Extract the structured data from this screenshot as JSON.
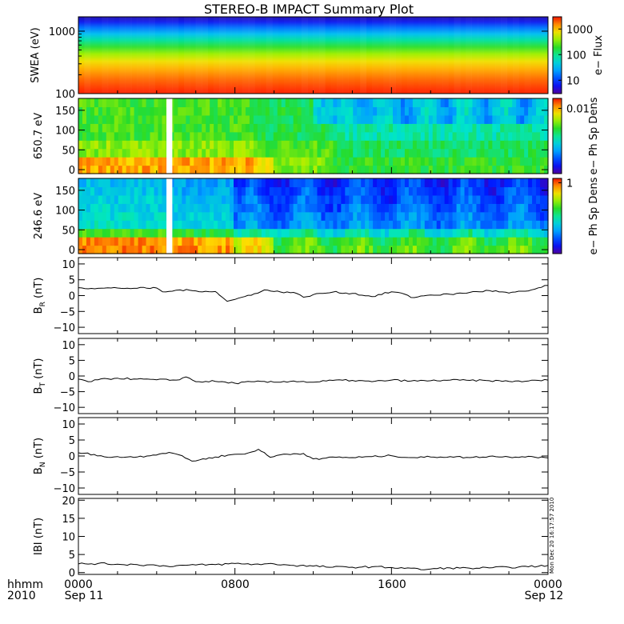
{
  "title": "STEREO-B IMPACT Summary Plot",
  "footer": {
    "row1_left": "hhmm",
    "row2_left": "2010",
    "x_tick_labels": [
      "0000",
      "0800",
      "1600",
      "0000"
    ],
    "date_labels": [
      "Sep 11",
      "Sep 12"
    ],
    "timestamp": "Mon Dec 20 16:17:57 2010"
  },
  "chart_data": [
    {
      "type": "heatmap",
      "ylabel": "SWEA (eV)",
      "yscale": "log",
      "ylim": [
        100,
        1700
      ],
      "y_ticks": [
        {
          "v": 100,
          "label": "100"
        },
        {
          "v": 1000,
          "label": "1000"
        }
      ],
      "colorbar": {
        "label": "e− Flux",
        "scale": "log",
        "range": [
          3,
          3000
        ],
        "ticks": [
          "1000",
          "100",
          "10"
        ],
        "tick_values": [
          1000,
          100,
          10
        ]
      },
      "description_bands_ev": [
        {
          "energy": 110,
          "color": "#ff2a00"
        },
        {
          "energy": 170,
          "color": "#ff6a00"
        },
        {
          "energy": 250,
          "color": "#ffb000"
        },
        {
          "energy": 330,
          "color": "#f0e000"
        },
        {
          "energy": 430,
          "color": "#a0f000"
        },
        {
          "energy": 560,
          "color": "#30e030"
        },
        {
          "energy": 720,
          "color": "#00e0a0"
        },
        {
          "energy": 900,
          "color": "#00c0f0"
        },
        {
          "energy": 1150,
          "color": "#0070ff"
        },
        {
          "energy": 1400,
          "color": "#1020f0"
        },
        {
          "energy": 1700,
          "color": "#2010b0"
        }
      ]
    },
    {
      "type": "heatmap",
      "ylabel": "650.7 eV",
      "ylim": [
        -10,
        180
      ],
      "y_ticks": [
        {
          "v": 0,
          "label": "0"
        },
        {
          "v": 50,
          "label": "50"
        },
        {
          "v": 100,
          "label": "100"
        },
        {
          "v": 150,
          "label": "150"
        }
      ],
      "colorbar": {
        "label": "e− Ph Sp Dens",
        "scale": "log",
        "range": [
          0.0007,
          0.015
        ],
        "ticks": [
          "0.01"
        ],
        "tick_values": [
          0.01
        ]
      },
      "data_gap_hours": [
        4.5,
        4.8
      ]
    },
    {
      "type": "heatmap",
      "ylabel": "246.6 eV",
      "ylim": [
        -10,
        180
      ],
      "y_ticks": [
        {
          "v": 0,
          "label": "0"
        },
        {
          "v": 50,
          "label": "50"
        },
        {
          "v": 100,
          "label": "100"
        },
        {
          "v": 150,
          "label": "150"
        }
      ],
      "colorbar": {
        "label": "e− Ph Sp Dens",
        "scale": "log",
        "range": [
          0.05,
          1.2
        ],
        "ticks": [
          "1"
        ],
        "tick_values": [
          1
        ]
      },
      "data_gap_hours": [
        4.5,
        4.8
      ]
    },
    {
      "type": "line",
      "ylabel_main": "B",
      "ylabel_sub": "R",
      "ylabel_unit": " (nT)",
      "ylim": [
        -12,
        12
      ],
      "y_ticks": [
        -10,
        -5,
        0,
        5,
        10
      ],
      "x_unit": "hours after 0000 Sep 11 2010",
      "x": [
        0,
        1,
        2,
        3,
        4,
        4.3,
        4.8,
        5.2,
        6,
        7,
        7.2,
        7.6,
        8,
        8.5,
        9,
        9.5,
        10,
        11,
        11.5,
        12,
        13,
        14,
        15,
        16,
        16.5,
        17,
        18,
        19,
        20,
        21,
        22,
        23,
        24
      ],
      "y": [
        2.5,
        2.3,
        2.4,
        2.3,
        2.4,
        1.2,
        1.4,
        1.8,
        1.5,
        1.3,
        0.2,
        -1.8,
        -1.2,
        -0.3,
        0.6,
        1.8,
        1.3,
        1.0,
        -0.5,
        0.3,
        1.1,
        0.7,
        -0.3,
        1.2,
        0.8,
        -0.6,
        0.2,
        0.4,
        1.0,
        1.6,
        0.8,
        1.5,
        3.2
      ]
    },
    {
      "type": "line",
      "ylabel_main": "B",
      "ylabel_sub": "T",
      "ylabel_unit": " (nT)",
      "ylim": [
        -12,
        12
      ],
      "y_ticks": [
        -10,
        -5,
        0,
        5,
        10
      ],
      "x_unit": "hours after 0000 Sep 11 2010",
      "x": [
        0,
        0.5,
        1,
        2,
        3,
        4,
        5,
        5.5,
        6,
        7,
        8,
        9,
        10,
        11,
        12,
        13,
        14,
        15,
        16,
        17,
        18,
        19,
        20,
        21,
        22,
        23,
        24
      ],
      "y": [
        -1.0,
        -1.8,
        -1.2,
        -0.7,
        -1.0,
        -1.2,
        -1.3,
        -0.3,
        -1.8,
        -1.7,
        -2.3,
        -1.8,
        -2.0,
        -1.6,
        -2.0,
        -1.4,
        -1.4,
        -1.8,
        -1.3,
        -1.6,
        -1.5,
        -1.3,
        -1.4,
        -1.5,
        -1.7,
        -1.6,
        -1.3
      ]
    },
    {
      "type": "line",
      "ylabel_main": "B",
      "ylabel_sub": "N",
      "ylabel_unit": " (nT)",
      "ylim": [
        -12,
        12
      ],
      "y_ticks": [
        -10,
        -5,
        0,
        5,
        10
      ],
      "x_unit": "hours after 0000 Sep 11 2010",
      "x": [
        0,
        0.8,
        1.5,
        2.5,
        3.5,
        4.3,
        4.8,
        5.3,
        5.8,
        6.2,
        7,
        7.8,
        8.5,
        9.2,
        9.8,
        10.5,
        11.5,
        12,
        12.3,
        13,
        14,
        15,
        16,
        17,
        18,
        19,
        20,
        21,
        22,
        23,
        24
      ],
      "y": [
        1.0,
        0.5,
        -0.4,
        -0.3,
        0.0,
        0.8,
        0.9,
        0.1,
        -1.6,
        -1.2,
        -0.3,
        0.4,
        0.6,
        2.1,
        -0.4,
        0.6,
        0.8,
        -0.9,
        -1.1,
        -0.3,
        -0.5,
        -0.2,
        0.1,
        -0.5,
        -0.3,
        -0.2,
        -0.5,
        -0.1,
        -0.3,
        -0.1,
        -0.6
      ]
    },
    {
      "type": "line",
      "ylabel_main": "IBI (nT)",
      "ylim": [
        -0.5,
        20.5
      ],
      "y_ticks": [
        0,
        5,
        10,
        15,
        20
      ],
      "x_unit": "hours after 0000 Sep 11 2010",
      "x": [
        0,
        1,
        2,
        3,
        4,
        4.5,
        5,
        6,
        7,
        8,
        9,
        10,
        11,
        12,
        13,
        14,
        15,
        16,
        17,
        17.5,
        18,
        19,
        20,
        21,
        22,
        23,
        24
      ],
      "y": [
        2.4,
        2.5,
        2.3,
        2.2,
        2.0,
        1.8,
        1.9,
        2.1,
        2.2,
        2.5,
        2.3,
        2.4,
        2.0,
        1.8,
        1.5,
        1.5,
        1.6,
        1.4,
        1.2,
        0.8,
        1.0,
        1.3,
        1.2,
        1.3,
        1.5,
        1.6,
        2.0
      ]
    }
  ]
}
